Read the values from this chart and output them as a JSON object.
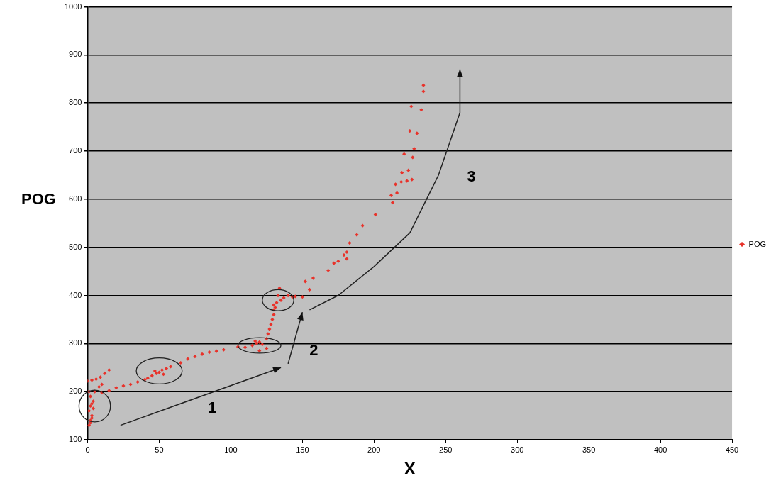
{
  "chart_data": {
    "type": "scatter",
    "xlabel": "X",
    "ylabel": "POG",
    "xlim": [
      0,
      450
    ],
    "xticks": [
      0,
      50,
      100,
      150,
      200,
      250,
      300,
      350,
      400,
      450
    ],
    "ylim": [
      100,
      1000
    ],
    "yticks": [
      100,
      200,
      300,
      400,
      500,
      600,
      700,
      800,
      900,
      1000
    ],
    "grid": "y",
    "legend": "right",
    "marker": "diamond",
    "annotations": [
      "1",
      "2",
      "3"
    ],
    "series": [
      {
        "name": "POG",
        "color": "#e8322a",
        "x": [
          1,
          2,
          3,
          1,
          2,
          3,
          4,
          2,
          3,
          1,
          4,
          2,
          0,
          3,
          6,
          9,
          12,
          15,
          5,
          8,
          10,
          10,
          15,
          20,
          25,
          30,
          35,
          40,
          42,
          45,
          48,
          50,
          52,
          55,
          58,
          47,
          53,
          65,
          70,
          75,
          80,
          85,
          90,
          95,
          105,
          110,
          115,
          118,
          120,
          122,
          125,
          120,
          117,
          125,
          126,
          127,
          128,
          129,
          130,
          130,
          130,
          132,
          135,
          133,
          131,
          137,
          140,
          134,
          145,
          143,
          150,
          155,
          152,
          157.5,
          168,
          172,
          175,
          181,
          179,
          181,
          183,
          188,
          192,
          201,
          213,
          216,
          212,
          215,
          226.5,
          223,
          219,
          224,
          219.5,
          227,
          221,
          228,
          230,
          225,
          233,
          226,
          234.5,
          234.5
        ],
        "values": [
          130,
          140,
          150,
          160,
          170,
          175,
          180,
          190,
          145,
          200,
          165,
          135,
          222,
          224,
          226,
          230,
          238,
          245,
          200,
          210,
          215,
          198,
          202,
          208,
          212,
          215,
          220,
          225,
          228,
          233,
          238,
          240,
          245,
          248,
          252,
          243,
          236,
          260,
          268,
          273,
          278,
          282,
          284,
          287,
          293,
          292,
          296,
          300,
          303,
          298,
          290,
          285,
          305,
          310,
          320,
          330,
          340,
          350,
          360,
          370,
          380,
          385,
          390,
          400,
          375,
          395,
          400,
          415,
          398,
          397,
          397,
          412,
          429,
          436,
          452,
          467,
          471,
          476,
          484,
          490,
          509,
          526,
          545,
          568,
          593,
          613,
          608,
          631,
          641,
          638,
          636,
          660,
          655,
          687,
          694,
          705,
          737,
          742,
          786,
          793,
          824,
          837
        ]
      }
    ]
  }
}
